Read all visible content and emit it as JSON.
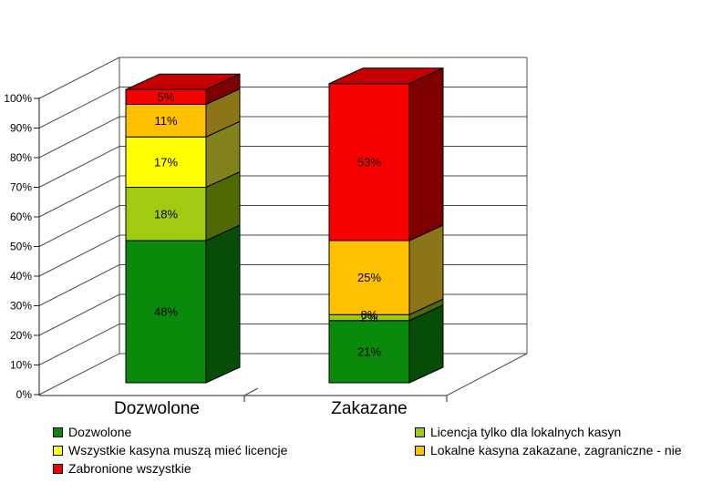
{
  "chart_data": {
    "type": "bar",
    "subtype": "stacked-3d-column",
    "title": "",
    "xlabel": "",
    "ylabel": "",
    "ylim": [
      0,
      100
    ],
    "grid": true,
    "legend_position": "bottom-two-columns",
    "categories": [
      "Dozwolone",
      "Zakazane"
    ],
    "y_ticks": [
      "0%",
      "10%",
      "20%",
      "30%",
      "40%",
      "50%",
      "60%",
      "70%",
      "80%",
      "90%",
      "100%"
    ],
    "series": [
      {
        "name": "Dozwolone",
        "color": "#0A8A0A",
        "side_color": "#074D07",
        "top_color": "#087008",
        "values": [
          48,
          21
        ]
      },
      {
        "name": "Licencja tylko dla lokalnych kasyn",
        "color": "#A1CB11",
        "side_color": "#4F6A05",
        "top_color": "#86AB0B",
        "values": [
          18,
          2
        ]
      },
      {
        "name": "Wszystkie kasyna muszą mieć licencje",
        "color": "#FFFF00",
        "side_color": "#82821B",
        "top_color": "#D9D900",
        "values": [
          17,
          0
        ]
      },
      {
        "name": "Lokalne kasyna zakazane, zagraniczne - nie",
        "color": "#FFC000",
        "side_color": "#8C7519",
        "top_color": "#D9A300",
        "values": [
          11,
          25
        ]
      },
      {
        "name": "Zabronione wszystkie",
        "color": "#F90000",
        "side_color": "#7E0000",
        "top_color": "#C40000",
        "values": [
          5,
          53
        ]
      }
    ],
    "value_labels": [
      [
        "48%",
        "18%",
        "17%",
        "11%",
        "5%"
      ],
      [
        "21%",
        "2%",
        "0%",
        "25%",
        "53%"
      ]
    ]
  },
  "legend": {
    "columns": [
      [
        0,
        2,
        4
      ],
      [
        1,
        3
      ]
    ]
  },
  "colors": {
    "grid_line": "#4D4D4D",
    "axis_line": "#222222",
    "bar_outline": "#000000",
    "wall_fill": "#FFFFFF",
    "label_text": "#000000"
  }
}
